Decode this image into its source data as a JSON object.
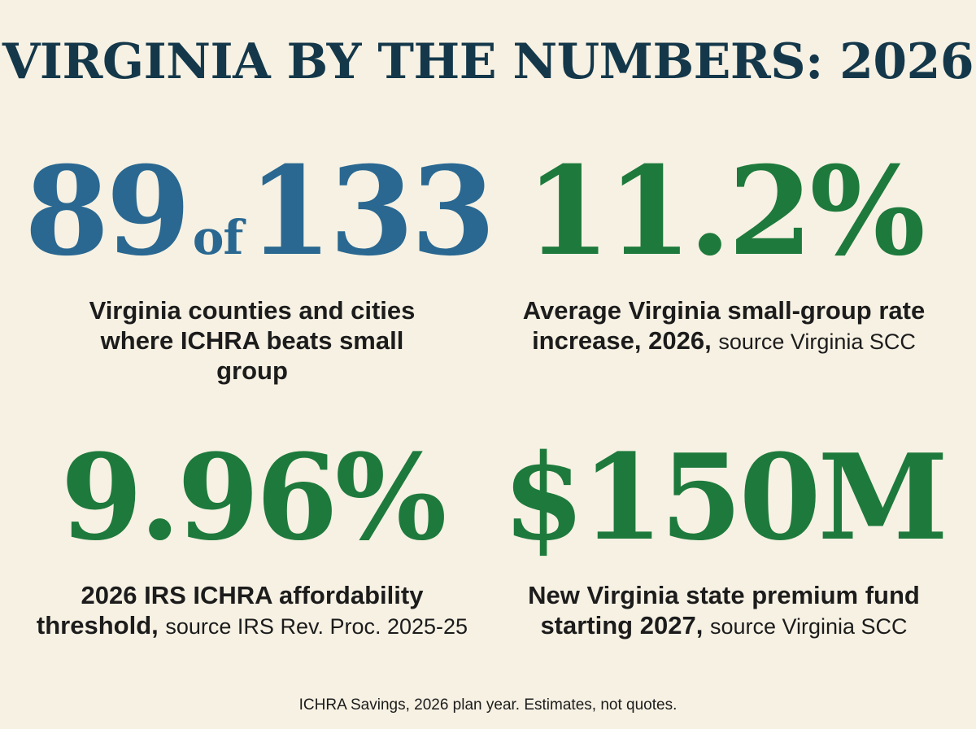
{
  "title": "VIRGINIA BY THE NUMBERS: 2026",
  "colors": {
    "title": "#14384a",
    "blue": "#2a6891",
    "green": "#1e7a3c",
    "background": "#f6f1e3"
  },
  "stats": [
    {
      "value_main": "89",
      "value_of": "of",
      "value_total": "133",
      "description": "Virginia counties and cities where ICHRA beats small group",
      "source": "",
      "color": "#2a6891"
    },
    {
      "value": "11.2%",
      "description": "Average Virginia small-group rate increase, 2026,",
      "source": "source Virginia SCC",
      "color": "#1e7a3c"
    },
    {
      "value": "9.96%",
      "description": "2026 IRS ICHRA affordability threshold,",
      "source": "source IRS Rev. Proc. 2025-25",
      "color": "#1e7a3c"
    },
    {
      "value": "$150M",
      "description": "New Virginia state premium fund starting 2027,",
      "source": "source Virginia SCC",
      "color": "#1e7a3c"
    }
  ],
  "footer": "ICHRA Savings, 2026 plan year. Estimates, not quotes."
}
